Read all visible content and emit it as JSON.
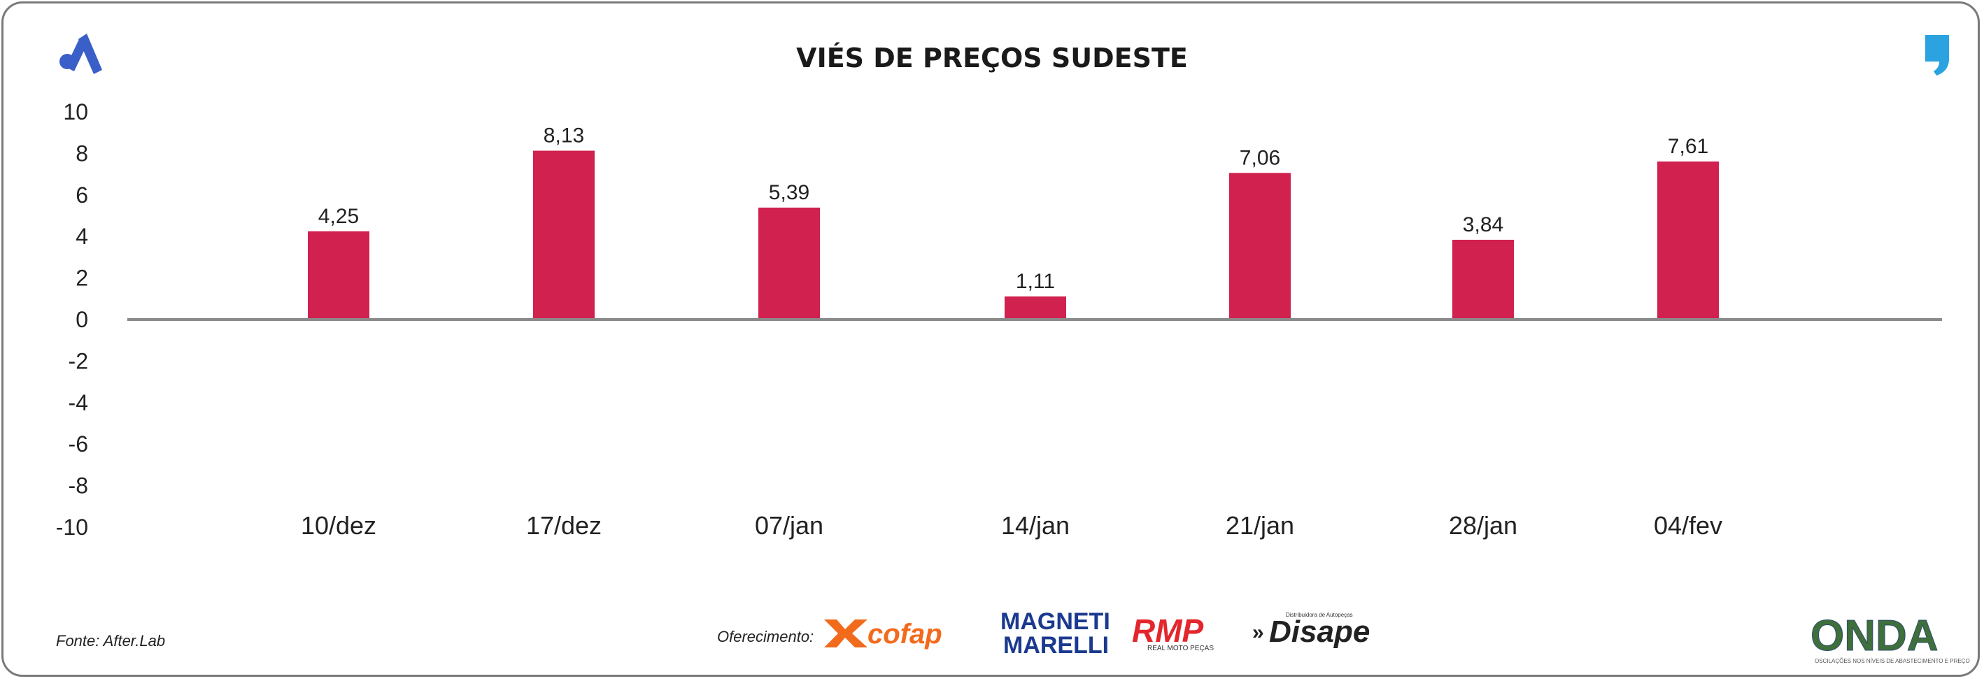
{
  "colors": {
    "bar": "#d0214f",
    "axis": "#8a8a8a",
    "brand_blue": "#3a5fc8",
    "quote_blue": "#2aa3e0"
  },
  "source_label": "Fonte: After.Lab",
  "sponsor_label": "Oferecimento:",
  "sponsors": [
    {
      "name": "cofap",
      "icon": "cofap-logo",
      "color": "#f26b1d"
    },
    {
      "name": "MAGNETI MARELLI",
      "icon": "magneti-marelli-logo",
      "color": "#1b3a8f"
    },
    {
      "name": "RMP",
      "subtitle": "REAL MOTO PEÇAS",
      "icon": "rmp-logo",
      "color": "#e3262d"
    },
    {
      "name": "Disape",
      "subtitle": "Distribuidora de Autopeças",
      "icon": "disape-logo",
      "color": "#222222"
    }
  ],
  "brand_icons": {
    "left": "after-lab-logo-icon",
    "right": "quote-mark-icon"
  },
  "onda_logo": {
    "name": "ONDA",
    "tagline": "OSCILAÇÕES NOS NÍVEIS DE ABASTECIMENTO E PREÇO"
  },
  "chart_data": {
    "type": "bar",
    "title": "VIÉS DE PREÇOS SUDESTE",
    "categories": [
      "10/dez",
      "17/dez",
      "07/jan",
      "14/jan",
      "21/jan",
      "28/jan",
      "04/fev"
    ],
    "values": [
      4.25,
      8.13,
      5.39,
      1.11,
      7.06,
      3.84,
      7.61
    ],
    "value_labels": [
      "4,25",
      "8,13",
      "5,39",
      "1,11",
      "7,06",
      "3,84",
      "7,61"
    ],
    "ylim": [
      -10,
      10
    ],
    "yticks": [
      10,
      8,
      6,
      4,
      2,
      0,
      -2,
      -4,
      -6,
      -8,
      -10
    ],
    "xlabel": "",
    "ylabel": "",
    "grid": false,
    "legend": "none"
  }
}
